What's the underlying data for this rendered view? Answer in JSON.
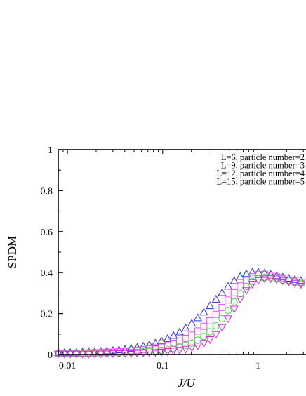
{
  "chart_data": {
    "type": "scatter",
    "xlabel": "J/U",
    "ylabel": "SPDM",
    "xscale": "log",
    "xlim": [
      0.008,
      3.2
    ],
    "ylim": [
      0,
      1
    ],
    "x_ticks": [
      0.01,
      0.1,
      1
    ],
    "x_tick_labels": [
      "0.01",
      "0.1",
      "1"
    ],
    "y_ticks": [
      0,
      0.2,
      0.4,
      0.6,
      0.8,
      1
    ],
    "y_tick_labels": [
      "0",
      "0.2",
      "0.4",
      "0.6",
      "0.8",
      "1"
    ],
    "legend_position": "top-right",
    "series": [
      {
        "name": "L=6, particle number=2",
        "marker": "triangle-up",
        "color": "#2b2bff",
        "x": [
          0.008,
          0.0093,
          0.0107,
          0.0124,
          0.0144,
          0.0167,
          0.0193,
          0.0224,
          0.0259,
          0.03,
          0.0347,
          0.0402,
          0.0466,
          0.054,
          0.0625,
          0.0724,
          0.0838,
          0.097,
          0.1123,
          0.13,
          0.1506,
          0.1744,
          0.2019,
          0.2338,
          0.2707,
          0.3135,
          0.363,
          0.4203,
          0.4867,
          0.5636,
          0.6526,
          0.7557,
          0.875,
          1.0132,
          1.1733,
          1.3586,
          1.5732,
          1.8216,
          2.1093,
          2.4425,
          2.8282
        ],
        "y": [
          0.01,
          0.01,
          0.01,
          0.011,
          0.012,
          0.013,
          0.014,
          0.016,
          0.018,
          0.02,
          0.023,
          0.026,
          0.03,
          0.035,
          0.041,
          0.048,
          0.056,
          0.066,
          0.078,
          0.093,
          0.11,
          0.13,
          0.153,
          0.179,
          0.207,
          0.238,
          0.27,
          0.302,
          0.333,
          0.36,
          0.381,
          0.395,
          0.402,
          0.402,
          0.398,
          0.392,
          0.385,
          0.378,
          0.372,
          0.366,
          0.361
        ]
      },
      {
        "name": "L=9, particle number=3",
        "marker": "square",
        "color": "#ff44ff",
        "x": [
          0.008,
          0.0093,
          0.0107,
          0.0124,
          0.0144,
          0.0167,
          0.0193,
          0.0224,
          0.0259,
          0.03,
          0.0347,
          0.0402,
          0.0466,
          0.054,
          0.0625,
          0.0724,
          0.0838,
          0.097,
          0.1123,
          0.13,
          0.1506,
          0.1744,
          0.2019,
          0.2338,
          0.2707,
          0.3135,
          0.363,
          0.4203,
          0.4867,
          0.5636,
          0.6526,
          0.7557,
          0.875,
          1.0132,
          1.1733,
          1.3586,
          1.5732,
          1.8216,
          2.1093,
          2.4425,
          2.8282
        ],
        "y": [
          0.006,
          0.006,
          0.006,
          0.007,
          0.007,
          0.008,
          0.009,
          0.01,
          0.011,
          0.012,
          0.014,
          0.016,
          0.018,
          0.021,
          0.024,
          0.028,
          0.033,
          0.039,
          0.046,
          0.055,
          0.066,
          0.079,
          0.095,
          0.115,
          0.138,
          0.165,
          0.196,
          0.23,
          0.266,
          0.302,
          0.335,
          0.362,
          0.38,
          0.39,
          0.391,
          0.386,
          0.379,
          0.371,
          0.364,
          0.358,
          0.353
        ]
      },
      {
        "name": "L=12, particle number=4",
        "marker": "circle",
        "color": "#33dd33",
        "x": [
          0.008,
          0.0093,
          0.0107,
          0.0124,
          0.0144,
          0.0167,
          0.0193,
          0.0224,
          0.0259,
          0.03,
          0.0347,
          0.0402,
          0.0466,
          0.054,
          0.0625,
          0.0724,
          0.0838,
          0.097,
          0.1123,
          0.13,
          0.1506,
          0.1744,
          0.2019,
          0.2338,
          0.2707,
          0.3135,
          0.363,
          0.4203,
          0.4867,
          0.5636,
          0.6526,
          0.7557,
          0.875,
          1.0132,
          1.1733,
          1.3586,
          1.5732,
          1.8216,
          2.1093,
          2.4425,
          2.8282
        ],
        "y": [
          0.003,
          0.003,
          0.003,
          0.004,
          0.004,
          0.004,
          0.005,
          0.005,
          0.006,
          0.007,
          0.007,
          0.008,
          0.01,
          0.011,
          0.013,
          0.015,
          0.018,
          0.021,
          0.025,
          0.03,
          0.037,
          0.045,
          0.056,
          0.07,
          0.088,
          0.111,
          0.14,
          0.175,
          0.215,
          0.257,
          0.297,
          0.331,
          0.356,
          0.37,
          0.376,
          0.375,
          0.37,
          0.364,
          0.358,
          0.352,
          0.347
        ]
      },
      {
        "name": "L=15, particle number=5",
        "marker": "triangle-down",
        "color": "#dd22dd",
        "x": [
          0.008,
          0.0093,
          0.0107,
          0.0124,
          0.0144,
          0.0167,
          0.0193,
          0.0224,
          0.0259,
          0.03,
          0.0347,
          0.0402,
          0.0466,
          0.054,
          0.0625,
          0.0724,
          0.0838,
          0.097,
          0.1123,
          0.13,
          0.1506,
          0.1744,
          0.2019,
          0.2338,
          0.2707,
          0.3135,
          0.363,
          0.4203,
          0.4867,
          0.5636,
          0.6526,
          0.7557,
          0.875,
          1.0132,
          1.1733,
          1.3586,
          1.5732,
          1.8216,
          2.1093,
          2.4425,
          2.8282
        ],
        "y": [
          0.002,
          0.002,
          0.002,
          0.002,
          0.002,
          0.002,
          0.003,
          0.003,
          0.003,
          0.004,
          0.004,
          0.005,
          0.005,
          0.006,
          0.007,
          0.008,
          0.01,
          0.012,
          0.014,
          0.017,
          0.021,
          0.026,
          0.033,
          0.042,
          0.055,
          0.073,
          0.098,
          0.132,
          0.175,
          0.222,
          0.27,
          0.312,
          0.343,
          0.362,
          0.37,
          0.37,
          0.366,
          0.36,
          0.354,
          0.348,
          0.342
        ]
      }
    ]
  }
}
